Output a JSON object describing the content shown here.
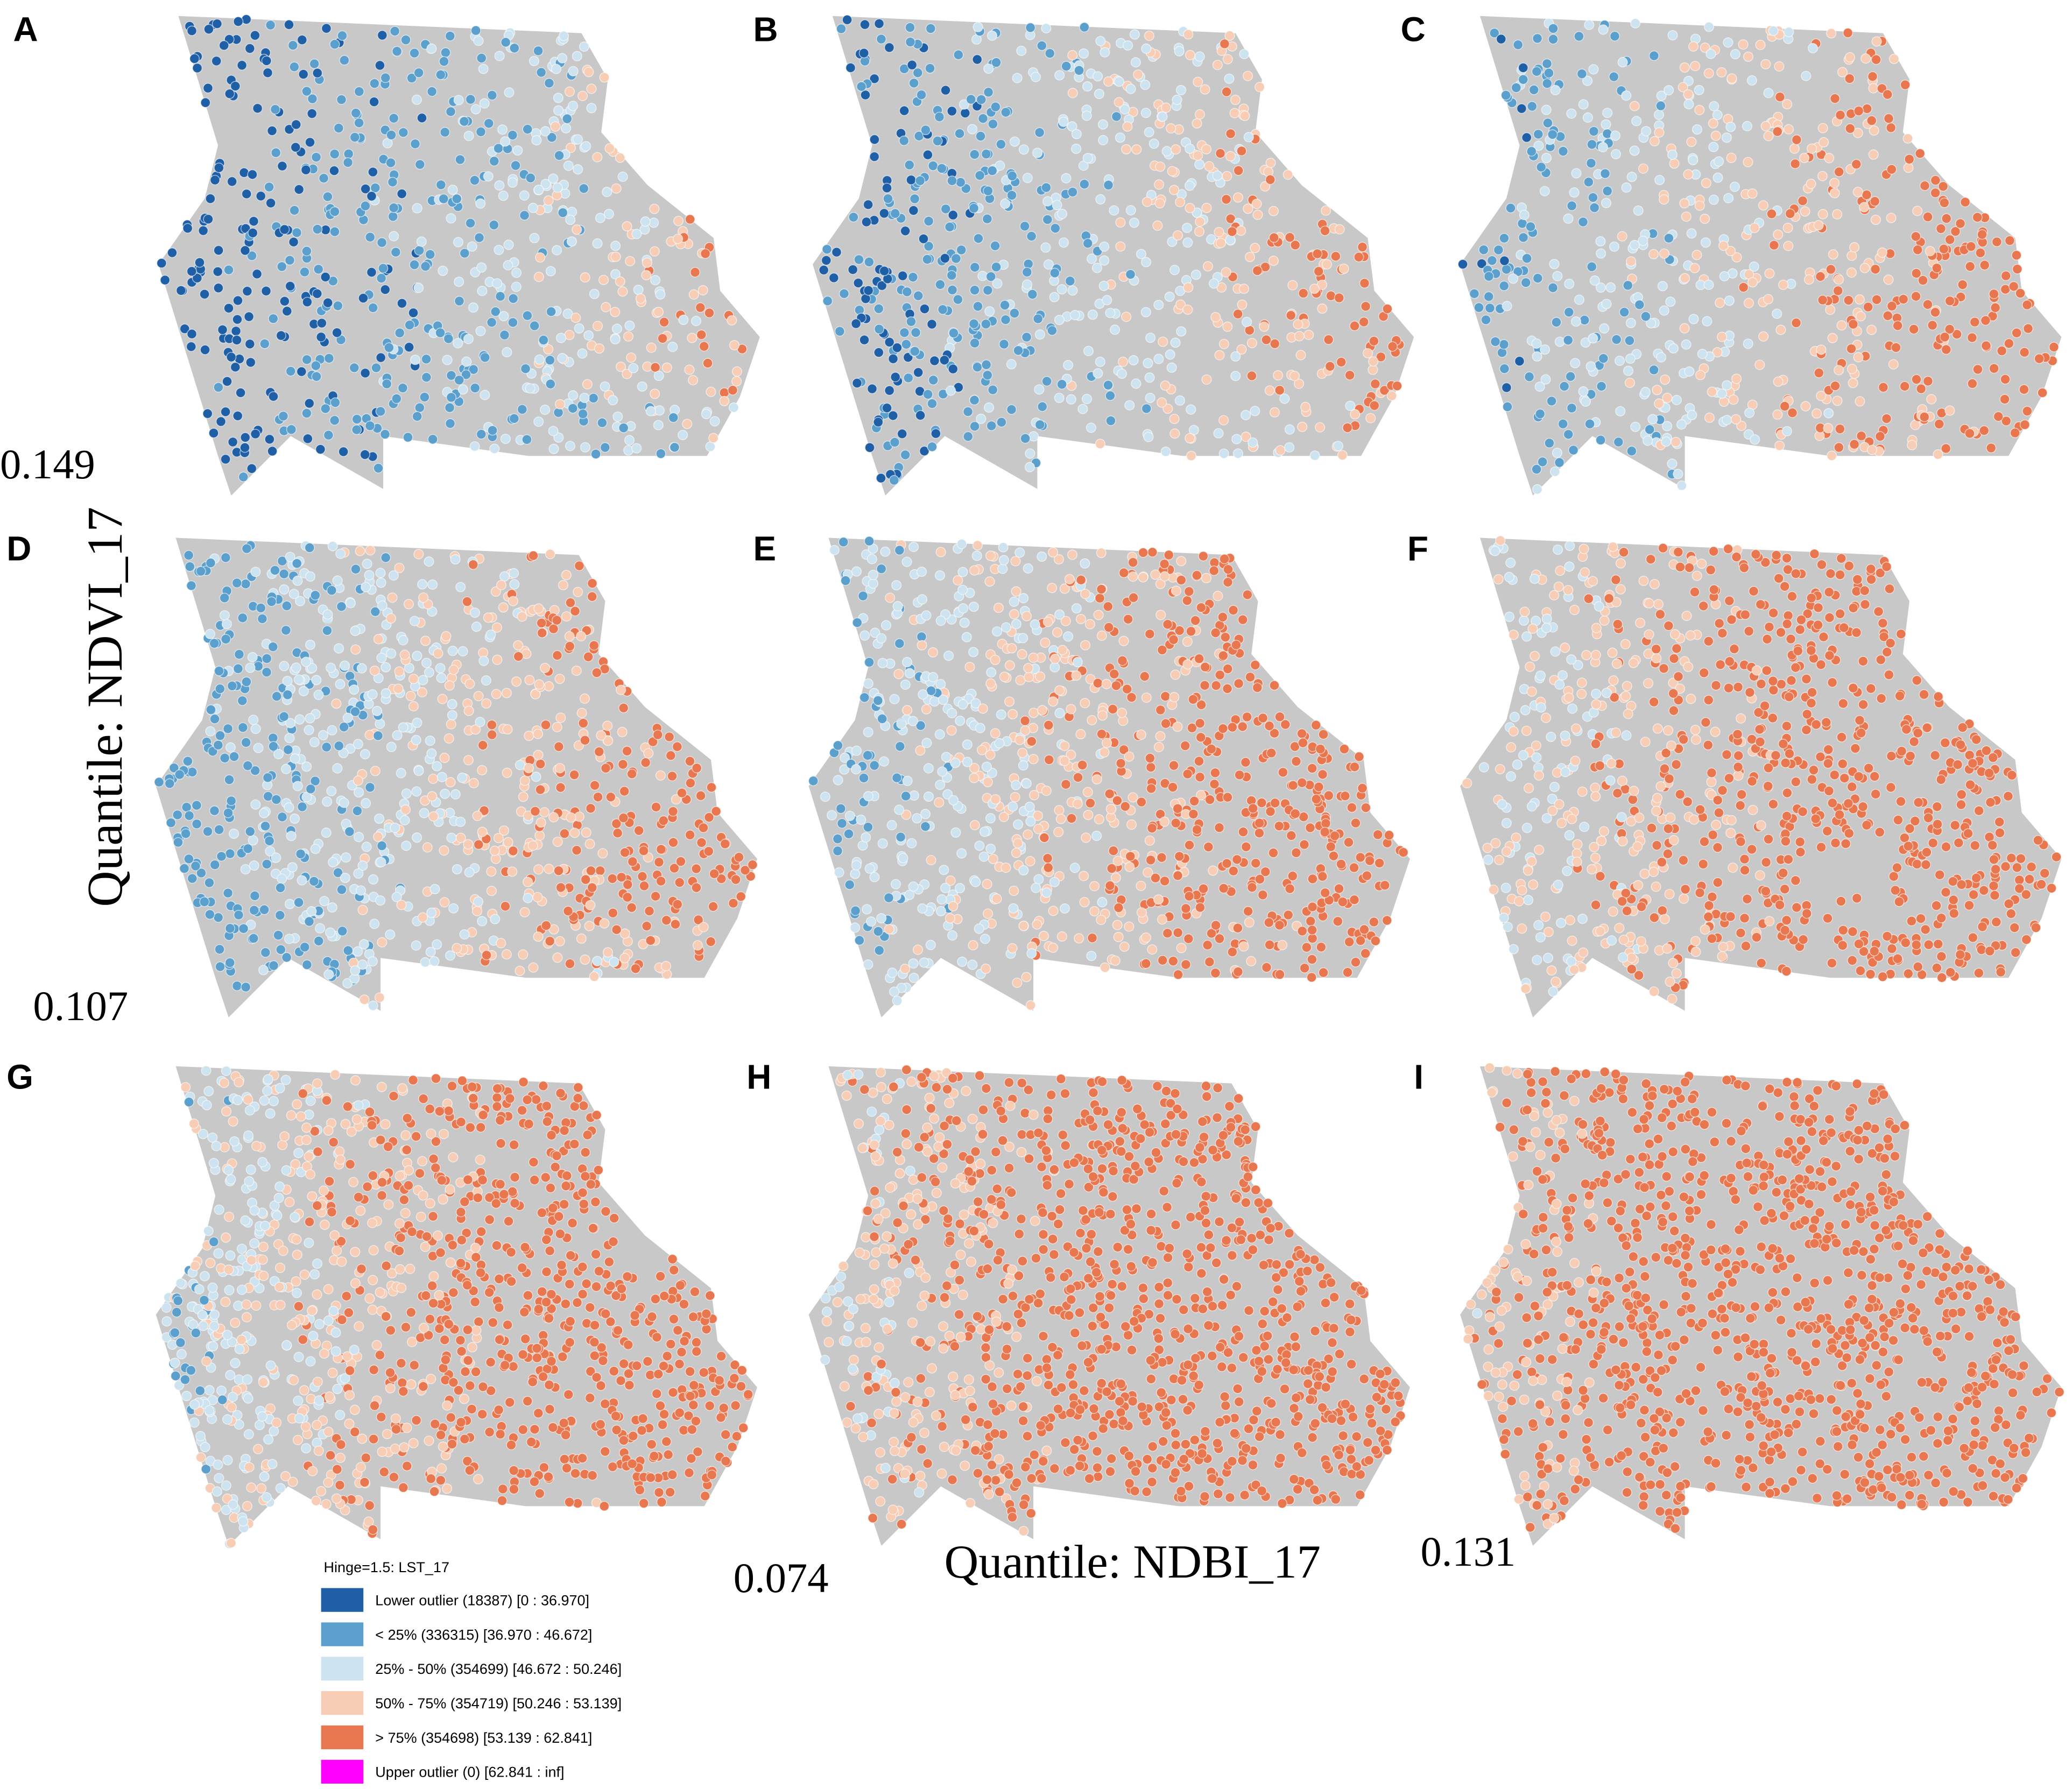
{
  "panels": [
    {
      "label": "A"
    },
    {
      "label": "B"
    },
    {
      "label": "C"
    },
    {
      "label": "D"
    },
    {
      "label": "E"
    },
    {
      "label": "F"
    },
    {
      "label": "G"
    },
    {
      "label": "H"
    },
    {
      "label": "I"
    }
  ],
  "annotations": [
    0.149,
    0.107,
    0.074,
    0.131
  ],
  "axis_labels": {
    "left": "Quantile: NDVI_17",
    "bottom": "Quantile: NDBI_17"
  },
  "legend": {
    "title": "Hinge=1.5: LST_17",
    "items": [
      {
        "label": "Lower outlier (18387) [0 : 36.970]",
        "color": "#1f5fa6"
      },
      {
        "label": "< 25% (336315) [36.970 : 46.672]",
        "color": "#5b9fcc"
      },
      {
        "label": "25% - 50% (354699) [46.672 : 50.246]",
        "color": "#cde3ef"
      },
      {
        "label": "50% - 75% (354719) [50.246 : 53.139]",
        "color": "#f7cdb6"
      },
      {
        "label": "> 75% (354698) [53.139 : 62.841]",
        "color": "#e8774f"
      },
      {
        "label": "Upper outlier (0) [62.841 : inf]",
        "color": "#ff00ff"
      }
    ]
  }
}
